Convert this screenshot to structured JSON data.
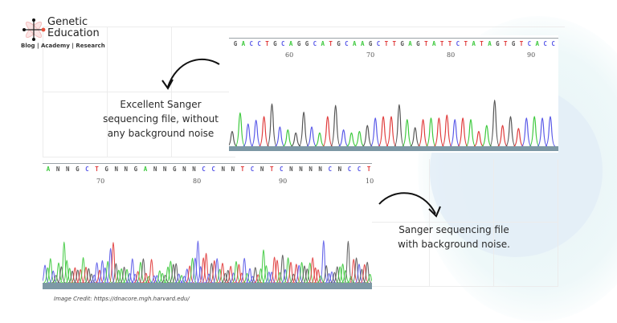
{
  "logo": {
    "title_line1": "Genetic",
    "title_line2": "Education",
    "subtitle": "Blog | Academy | Research",
    "accent_color": "#e8503a"
  },
  "top_panel": {
    "caption": "Excellent Sanger sequencing file, without any background noise",
    "caption_lines": [
      "Excellent Sanger",
      "sequencing file, without",
      "any background noise"
    ],
    "bases": [
      "G",
      "A",
      "C",
      "C",
      "T",
      "G",
      "C",
      "A",
      "G",
      "G",
      "C",
      "A",
      "T",
      "G",
      "C",
      "A",
      "A",
      "G",
      "C",
      "T",
      "T",
      "G",
      "A",
      "G",
      "T",
      "A",
      "T",
      "T",
      "C",
      "T",
      "A",
      "T",
      "A",
      "G",
      "T",
      "G",
      "T",
      "C",
      "A",
      "C",
      "C"
    ],
    "tick_labels": [
      "60",
      "70",
      "80",
      "90"
    ]
  },
  "bottom_panel": {
    "caption": "Sanger sequencing file with background noise.",
    "caption_lines": [
      "Sanger sequencing file",
      "with background noise."
    ],
    "bases": [
      "A",
      "N",
      "N",
      "G",
      "C",
      "T",
      "G",
      "N",
      "N",
      "G",
      "A",
      "N",
      "N",
      "G",
      "N",
      "N",
      "C",
      "C",
      "N",
      "N",
      "T",
      "C",
      "N",
      "T",
      "C",
      "N",
      "N",
      "N",
      "N",
      "C",
      "N",
      "C",
      "C",
      "T"
    ],
    "tick_labels": [
      "70",
      "80",
      "90",
      "10"
    ]
  },
  "base_colors": {
    "A": "#3cc93c",
    "C": "#5858e8",
    "G": "#555555",
    "T": "#e03a3a",
    "N": "#555555"
  },
  "credit": "Image Credit: https://dnacore.mgh.harvard.edu/"
}
